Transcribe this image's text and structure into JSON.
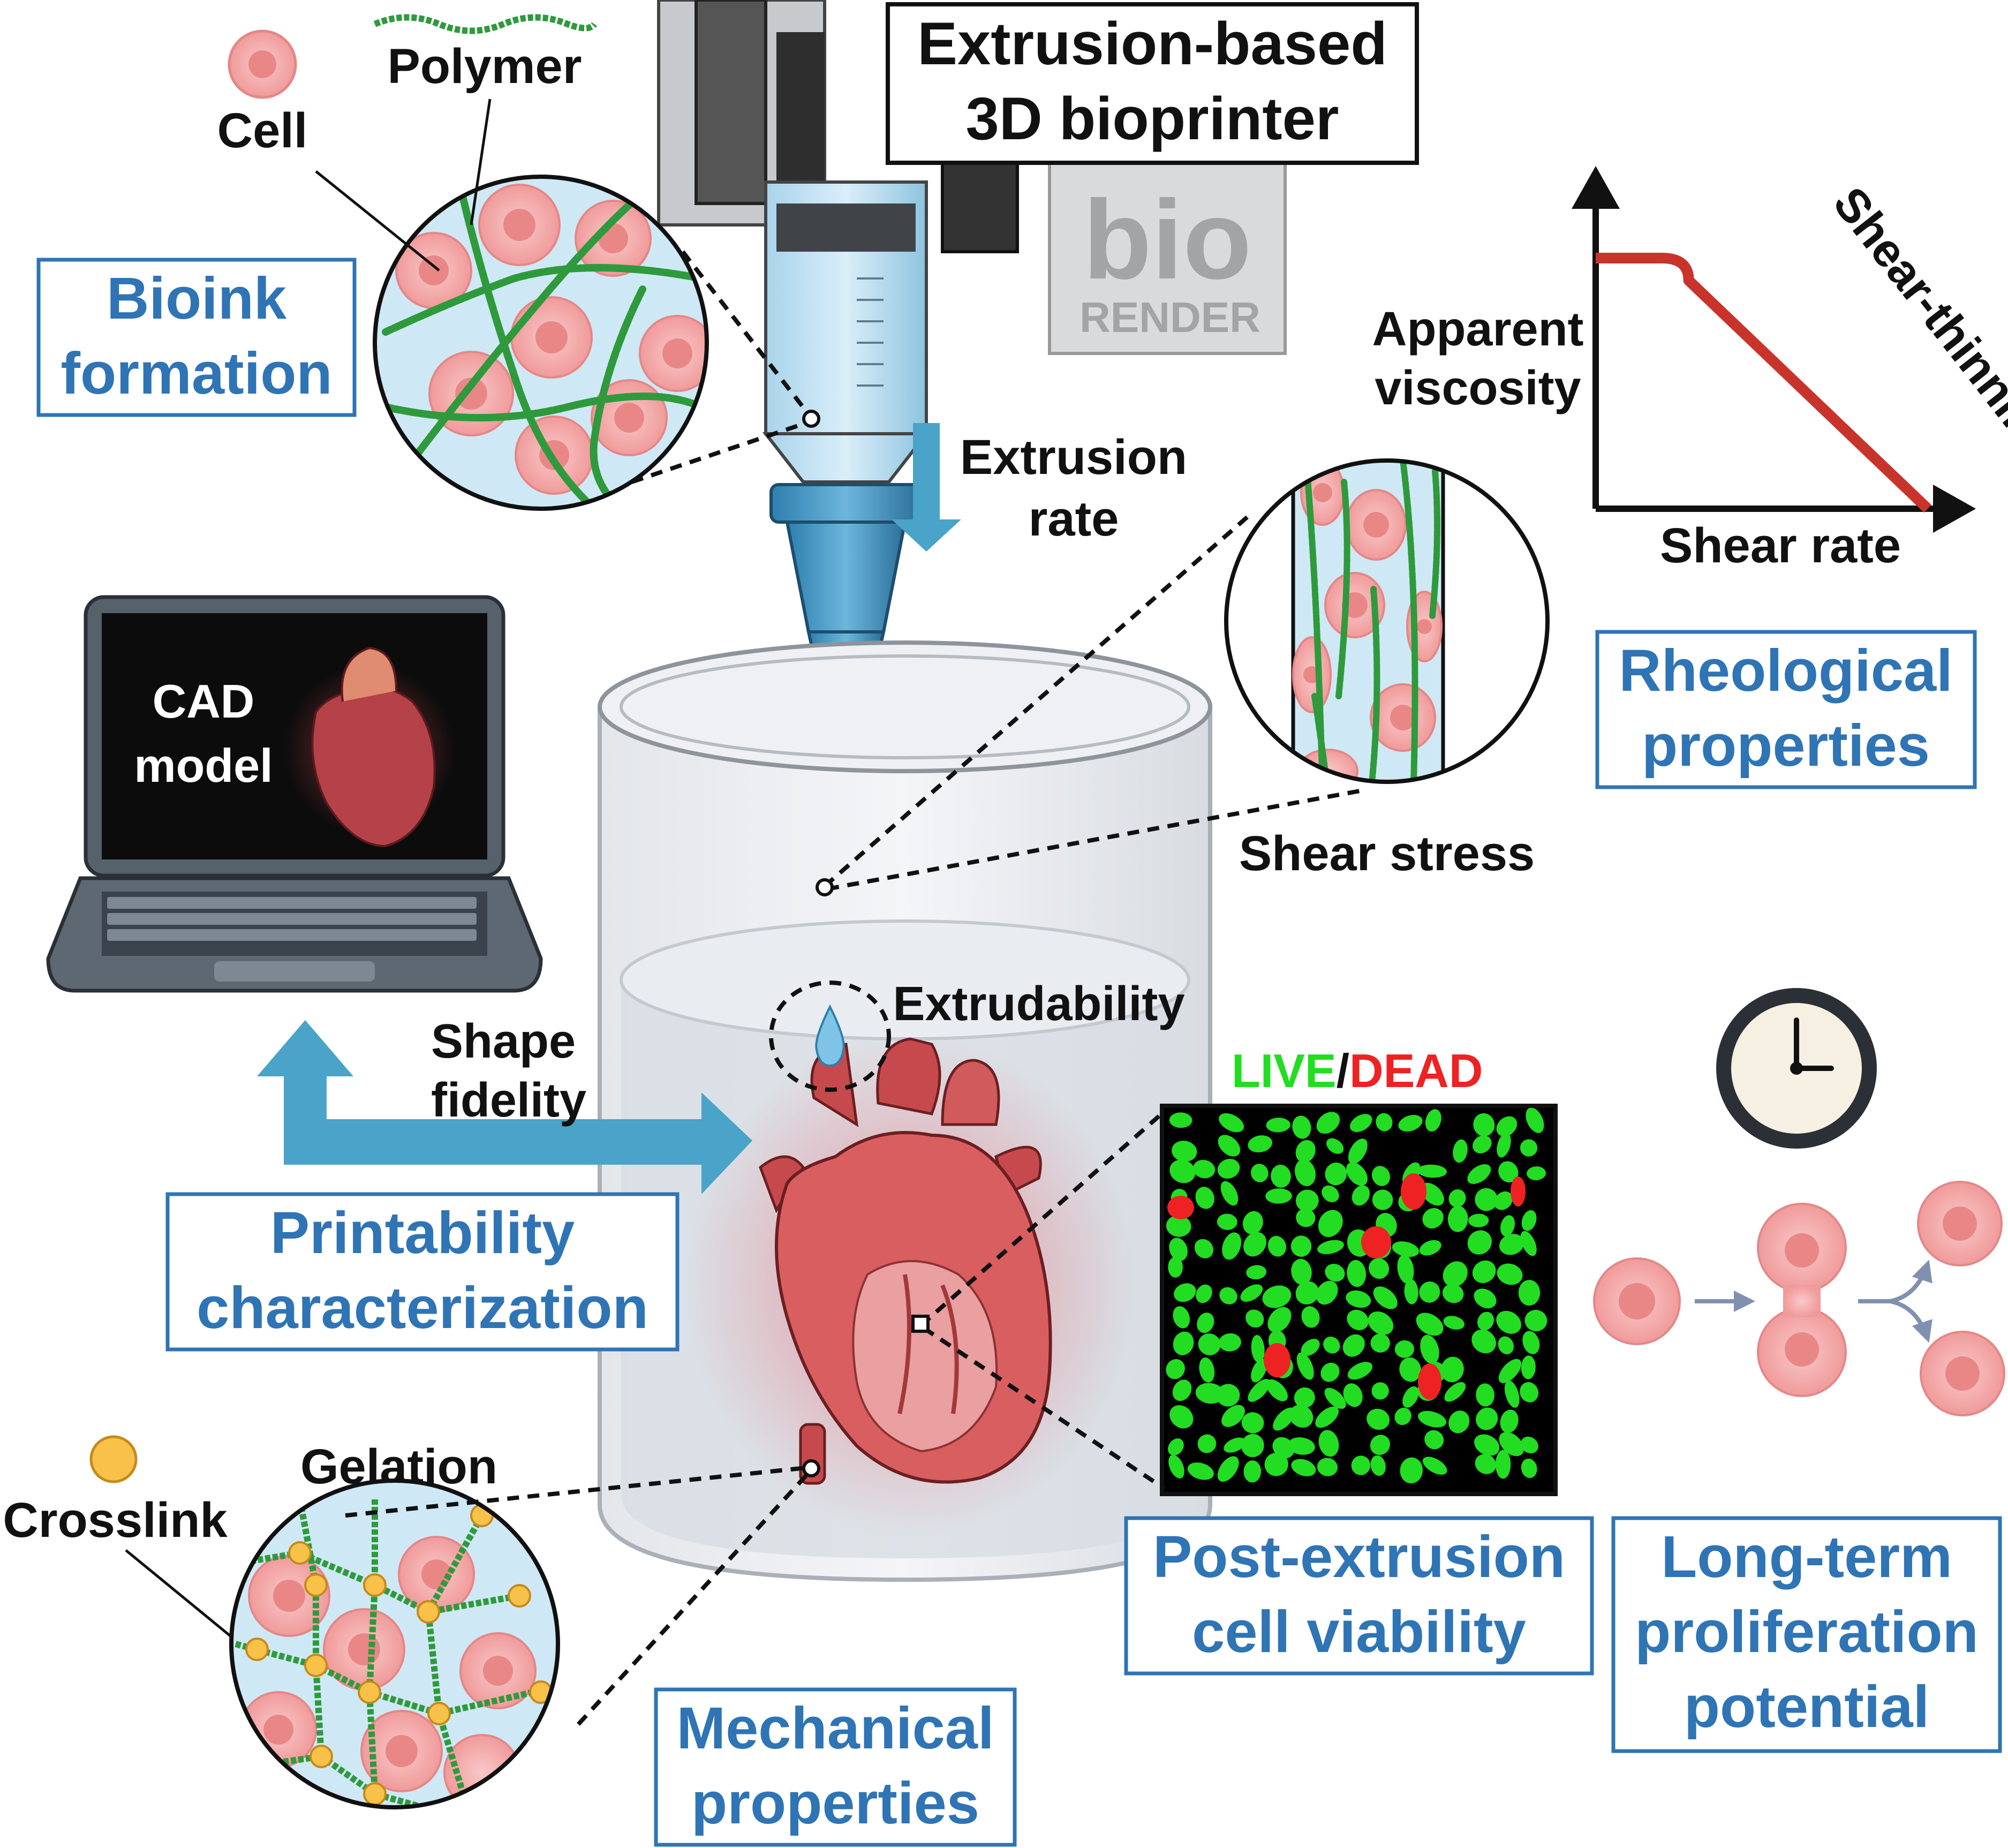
{
  "colors": {
    "accent_blue": "#2f74b5",
    "arrow_blue": "#4aa3c8",
    "cell_pink": "#f2a8a8",
    "polymer_green": "#2e9a3c",
    "crosslink_yellow": "#f7c14a",
    "curve_red": "#c8342b",
    "live_green": "#22dd22",
    "dead_red": "#ee2222"
  },
  "icons": [
    "cell-icon",
    "crosslink-icon",
    "clock-icon",
    "laptop-icon",
    "heart-icon",
    "syringe-icon",
    "biorender-logo"
  ],
  "labels": {
    "polymer": "Polymer",
    "cell": "Cell",
    "printer_title_line1": "Extrusion-based",
    "printer_title_line2": "3D bioprinter",
    "extrusion_rate_line1": "Extrusion",
    "extrusion_rate_line2": "rate",
    "apparent_viscosity_line1": "Apparent",
    "apparent_viscosity_line2": "viscosity",
    "shear_thinning": "Shear-thinning",
    "shear_rate": "Shear rate",
    "shear_stress": "Shear stress",
    "cad_line1": "CAD",
    "cad_line2": "model",
    "extrudability": "Extrudability",
    "shape_fidelity_line1": "Shape",
    "shape_fidelity_line2": "fidelity",
    "live": "LIVE",
    "slash": "/",
    "dead": "DEAD",
    "crosslink": "Crosslink",
    "gelation": "Gelation",
    "biorender_bio": "bio",
    "biorender_render": "RENDER"
  },
  "boxes": {
    "bioink_line1": "Bioink",
    "bioink_line2": "formation",
    "rheological_line1": "Rheological",
    "rheological_line2": "properties",
    "printability_line1": "Printability",
    "printability_line2": "characterization",
    "post_extrusion_line1": "Post-extrusion",
    "post_extrusion_line2": "cell viability",
    "long_term_line1": "Long-term",
    "long_term_line2": "proliferation",
    "long_term_line3": "potential",
    "mechanical_line1": "Mechanical",
    "mechanical_line2": "properties"
  },
  "chart_data": {
    "type": "line",
    "title": "",
    "xlabel": "Shear rate",
    "ylabel": "Apparent viscosity",
    "series": [
      {
        "name": "Shear-thinning",
        "x": [
          0,
          0.2,
          0.28,
          1.0
        ],
        "y": [
          0.9,
          0.9,
          0.82,
          0.0
        ]
      }
    ],
    "xlim": [
      0,
      1
    ],
    "ylim": [
      0,
      1
    ],
    "grid": false
  }
}
